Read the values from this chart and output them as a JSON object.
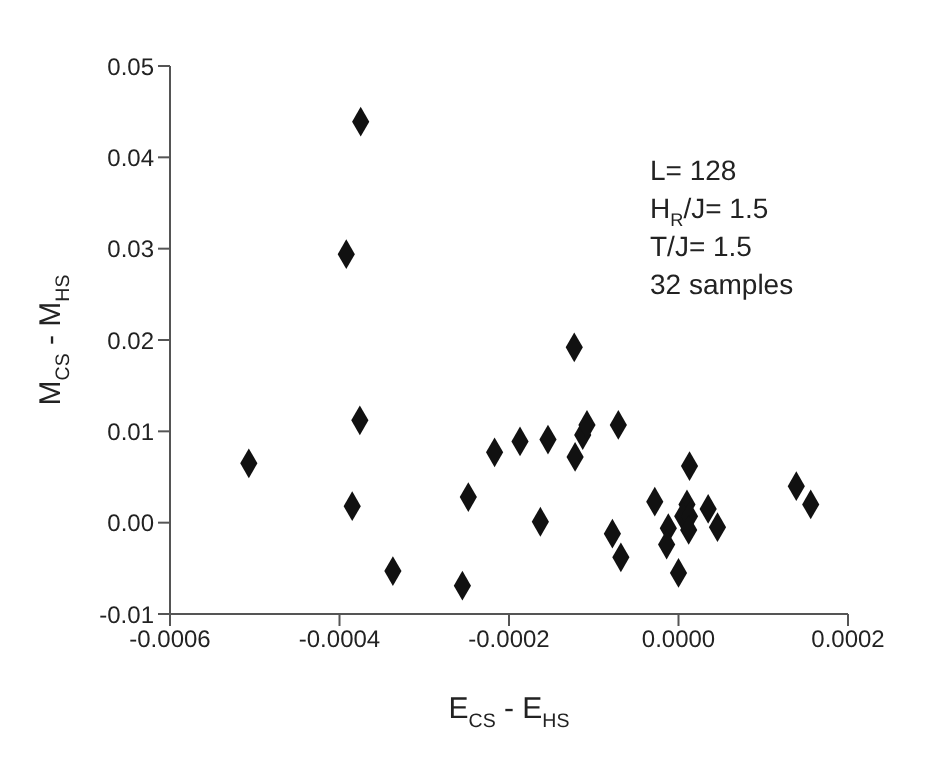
{
  "chart_data": {
    "type": "scatter",
    "xlabel": "E$_{CS}$ - E$_{HS}$",
    "ylabel": "M$_{CS}$ - M$_{HS}$",
    "annotations": [
      "L= 128",
      "H$_{R}$/J= 1.5",
      "T/J= 1.5",
      "32 samples"
    ],
    "xlim": [
      -0.0006,
      0.0002
    ],
    "xticks": [
      {
        "value": -0.0006,
        "label": "-0.0006"
      },
      {
        "value": -0.0004,
        "label": "-0.0004"
      },
      {
        "value": -0.0002,
        "label": "-0.0002"
      },
      {
        "value": 0,
        "label": "0.0000"
      },
      {
        "value": 0.0002,
        "label": "0.0002"
      }
    ],
    "ylim": [
      -0.01,
      0.05
    ],
    "yticks": [
      {
        "value": -0.01,
        "label": "-0.01"
      },
      {
        "value": 0,
        "label": "0.00"
      },
      {
        "value": 0.01,
        "label": "0.01"
      },
      {
        "value": 0.02,
        "label": "0.02"
      },
      {
        "value": 0.03,
        "label": "0.03"
      },
      {
        "value": 0.04,
        "label": "0.04"
      },
      {
        "value": 0.05,
        "label": "0.05"
      }
    ],
    "grid": false,
    "legend": false,
    "marker": "diamond",
    "series": [
      {
        "color": "#111111",
        "x": [
          -0.000375,
          -0.000392,
          -0.000507,
          -0.000376,
          -0.000385,
          -0.000337,
          -0.000255,
          -0.000248,
          -0.000217,
          -0.000187,
          -0.000154,
          -0.000163,
          -0.000123,
          -0.000122,
          -0.000113,
          -0.000108,
          -7.1e-05,
          -7.8e-05,
          -6.8e-05,
          -2.8e-05,
          -1.2e-05,
          -1.4e-05,
          0.0,
          1e-05,
          5e-06,
          1.3e-05,
          1.2e-05,
          1.3e-05,
          3.5e-05,
          4.6e-05,
          0.000139,
          0.000156
        ],
        "values": [
          0.0439,
          0.0294,
          0.0065,
          0.0112,
          0.0018,
          -0.0053,
          -0.0069,
          0.0028,
          0.0077,
          0.0089,
          0.0091,
          0.0001,
          0.0192,
          0.0072,
          0.0096,
          0.0107,
          0.0107,
          -0.0012,
          -0.0038,
          0.0023,
          -0.0006,
          -0.0024,
          -0.0055,
          0.002,
          0.0007,
          0.0007,
          -0.0008,
          0.0062,
          0.0015,
          -0.0005,
          0.004,
          0.002
        ]
      }
    ]
  }
}
